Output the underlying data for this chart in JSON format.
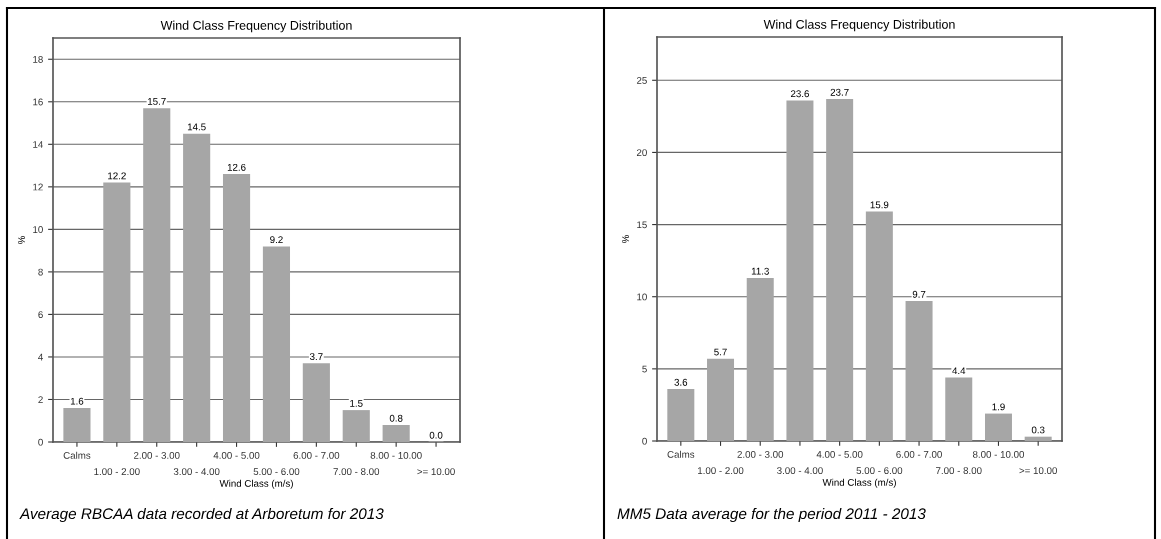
{
  "chart_data": [
    {
      "type": "bar",
      "title": "Wind Class Frequency Distribution",
      "xlabel": "Wind Class (m/s)",
      "ylabel": "%",
      "categories": [
        "Calms",
        "1.00 - 2.00",
        "2.00 - 3.00",
        "3.00 - 4.00",
        "4.00 - 5.00",
        "5.00 - 6.00",
        "6.00 - 7.00",
        "7.00 - 8.00",
        "8.00 - 10.00",
        ">= 10.00"
      ],
      "values": [
        1.6,
        12.2,
        15.7,
        14.5,
        12.6,
        9.2,
        3.7,
        1.5,
        0.8,
        0.0
      ],
      "value_labels": [
        "1.6",
        "12.2",
        "15.7",
        "14.5",
        "12.6",
        "9.2",
        "3.7",
        "1.5",
        "0.8",
        "0.0"
      ],
      "color": "#a6a6a6",
      "ylim": [
        0,
        19
      ],
      "yticks": [
        0,
        2,
        4,
        6,
        8,
        10,
        12,
        14,
        16,
        18
      ],
      "grid": "y",
      "annotations": [
        "Average RBCAA data recorded at Arboretum for 2013"
      ]
    },
    {
      "type": "bar",
      "title": "Wind Class Frequency Distribution",
      "xlabel": "Wind Class (m/s)",
      "ylabel": "%",
      "categories": [
        "Calms",
        "1.00 - 2.00",
        "2.00 - 3.00",
        "3.00 - 4.00",
        "4.00 - 5.00",
        "5.00 - 6.00",
        "6.00 - 7.00",
        "7.00 - 8.00",
        "8.00 - 10.00",
        ">= 10.00"
      ],
      "values": [
        3.6,
        5.7,
        11.3,
        23.6,
        23.7,
        15.9,
        9.7,
        4.4,
        1.9,
        0.3
      ],
      "value_labels": [
        "3.6",
        "5.7",
        "11.3",
        "23.6",
        "23.7",
        "15.9",
        "9.7",
        "4.4",
        "1.9",
        "0.3"
      ],
      "color": "#a6a6a6",
      "ylim": [
        0,
        28
      ],
      "yticks": [
        0,
        5,
        10,
        15,
        20,
        25
      ],
      "grid": "y",
      "annotations": [
        "MM5 Data average for the period 2011 - 2013"
      ]
    }
  ]
}
